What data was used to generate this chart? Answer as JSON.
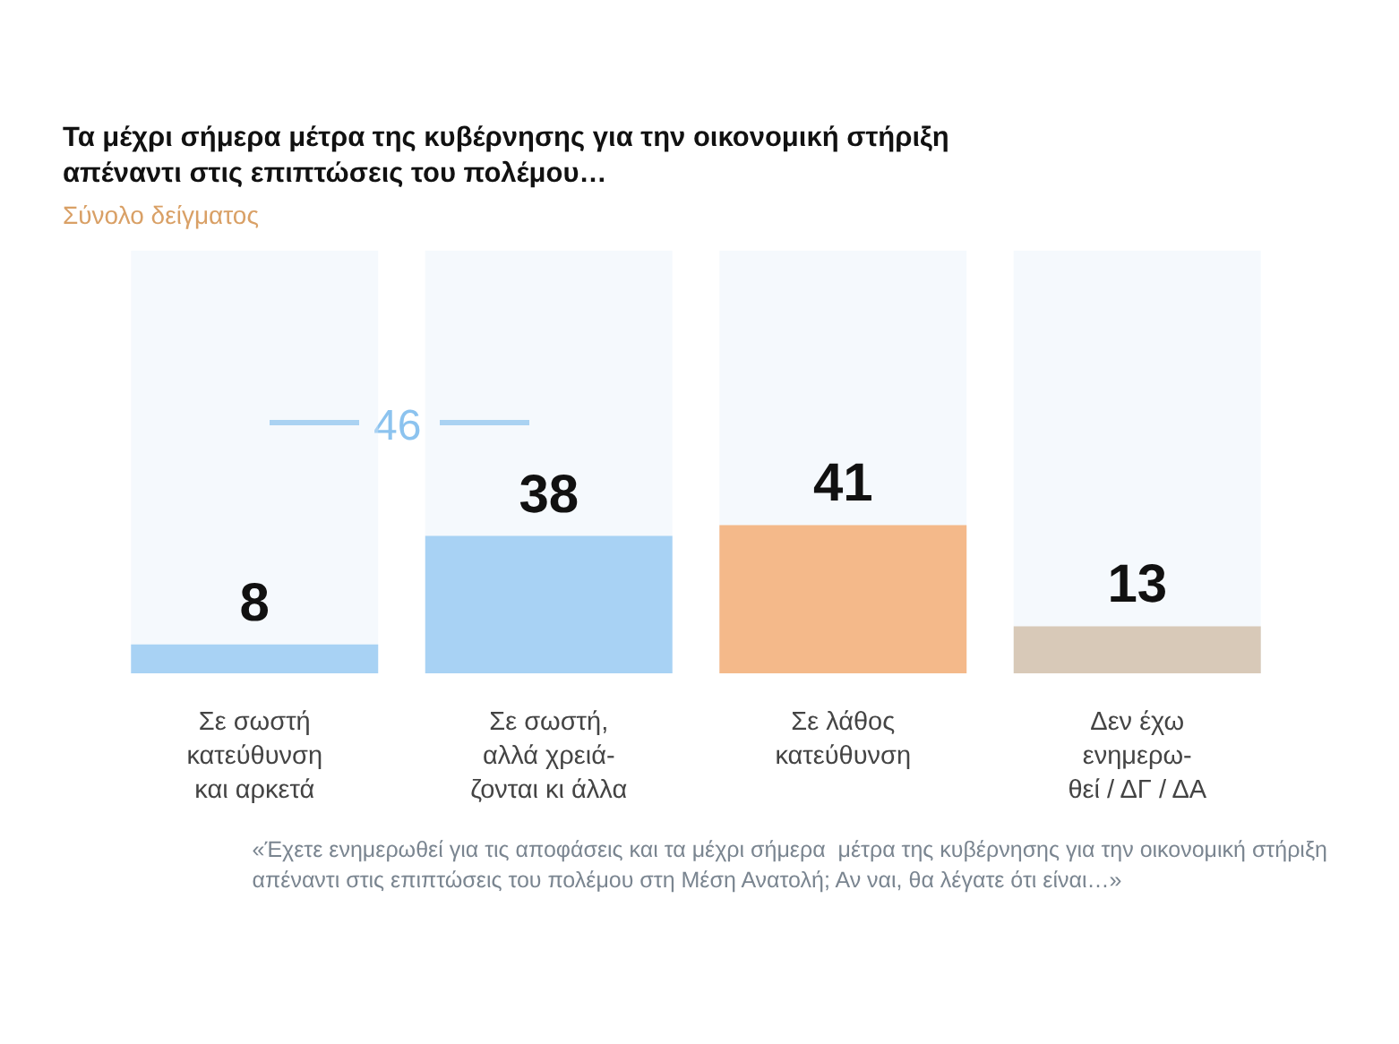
{
  "chart_data": {
    "type": "bar",
    "title": "Τα μέχρι σήμερα μέτρα της κυβέρνησης για την οικονομική στήριξη\nαπέναντι στις επιπτώσεις του πολέμου…",
    "subtitle": "Σύνολο δείγματος",
    "categories": [
      "Σε σωστή\nκατεύθυνση\nκαι αρκετά",
      "Σε σωστή,\nαλλά χρειά-\nζονται κι άλλα",
      "Σε λάθος\nκατεύθυνση",
      "Δεν έχω\nενημερω-\nθεί / ΔΓ / ΔΑ"
    ],
    "values": [
      8,
      38,
      41,
      13
    ],
    "colors": [
      "#a8d2f4",
      "#a8d2f4",
      "#f4b98a",
      "#d8c9b8"
    ],
    "data_labels": true,
    "annotations": [
      "46",
      "«Έχετε ενημερωθεί για τις αποφάσεις και τα μέχρι σήμερα  μέτρα της κυβέρνησης για την οικονομική στήριξη\nαπέναντι στις επιπτώσεις του πολέμου στη Μέση Ανατολή; Αν ναι, θα λέγατε ότι είναι…»"
    ]
  }
}
